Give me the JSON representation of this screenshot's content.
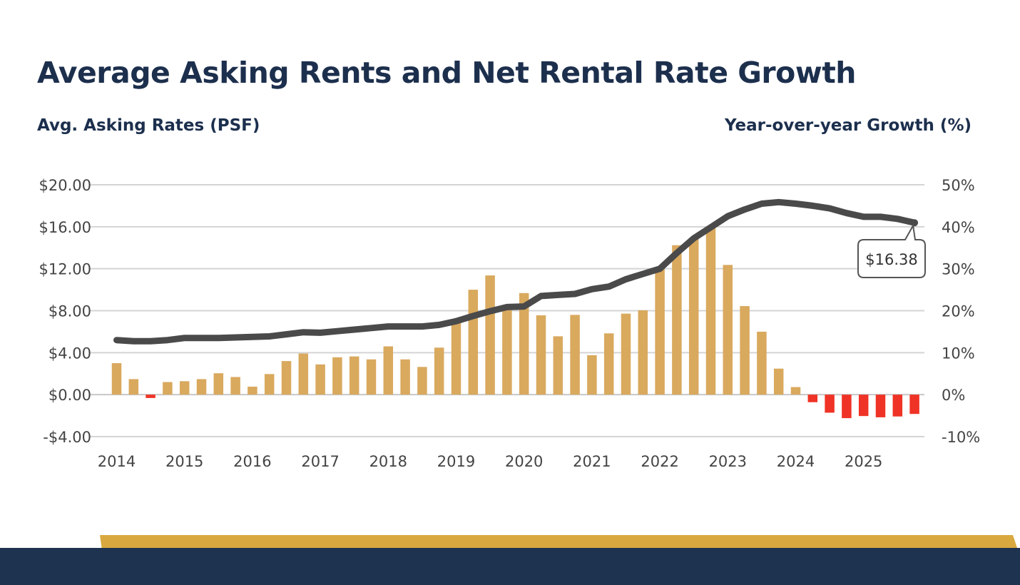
{
  "header": {
    "title": "Average Asking Rents and Net Rental Rate Growth",
    "left_axis_title": "Avg. Asking Rates (PSF)",
    "right_axis_title": "Year-over-year Growth (%)"
  },
  "colors": {
    "title": "#1c2f4d",
    "bar_positive": "#d9a95e",
    "bar_negative": "#ef3326",
    "line": "#4a4a4a",
    "grid": "#d4d4d4",
    "tick": "#444444",
    "band_gold": "#d9a93f",
    "band_navy": "#1e3350"
  },
  "chart_data": {
    "type": "bar+line",
    "title": "Average Asking Rents and Net Rental Rate Growth",
    "left_axis": {
      "label": "Avg. Asking Rates (PSF)",
      "range": [
        -4,
        20
      ],
      "ticks": [
        "-$4.00",
        "$0.00",
        "$4.00",
        "$8.00",
        "$12.00",
        "$16.00",
        "$20.00"
      ],
      "tick_values": [
        -4,
        0,
        4,
        8,
        12,
        16,
        20
      ]
    },
    "right_axis": {
      "label": "Year-over-year Growth (%)",
      "range": [
        -10,
        50
      ],
      "ticks": [
        "-10%",
        "0%",
        "10%",
        "20%",
        "30%",
        "40%",
        "50%"
      ],
      "tick_values": [
        -10,
        0,
        10,
        20,
        30,
        40,
        50
      ]
    },
    "x_tick_labels": [
      "2014",
      "2015",
      "2016",
      "2017",
      "2018",
      "2019",
      "2020",
      "2021",
      "2022",
      "2023",
      "2024",
      "2025"
    ],
    "quarters_per_year": 4,
    "series": [
      {
        "name": "Year-over-year Growth (%)",
        "type": "bar",
        "axis": "right",
        "values": [
          7.5,
          3.7,
          -0.8,
          3.0,
          3.2,
          3.7,
          5.1,
          4.2,
          1.9,
          4.9,
          8.0,
          9.8,
          7.2,
          8.9,
          9.1,
          8.4,
          11.5,
          8.4,
          6.6,
          11.2,
          17.7,
          25.0,
          28.4,
          20.7,
          24.2,
          18.9,
          13.9,
          19.0,
          9.4,
          14.6,
          19.3,
          20.1,
          30.2,
          35.6,
          37.4,
          40.0,
          30.9,
          21.1,
          15.0,
          6.2,
          1.8,
          -1.8,
          -4.3,
          -5.6,
          -5.1,
          -5.4,
          -5.2,
          -4.6
        ]
      },
      {
        "name": "Avg. Asking Rates (PSF)",
        "type": "line",
        "axis": "left",
        "values": [
          5.2,
          5.1,
          5.1,
          5.2,
          5.4,
          5.4,
          5.4,
          5.45,
          5.5,
          5.55,
          5.75,
          5.95,
          5.9,
          6.05,
          6.2,
          6.35,
          6.5,
          6.5,
          6.5,
          6.65,
          7.0,
          7.5,
          7.95,
          8.35,
          8.4,
          9.4,
          9.5,
          9.6,
          10.05,
          10.3,
          11.0,
          11.5,
          12.0,
          13.5,
          14.9,
          15.95,
          17.0,
          17.65,
          18.2,
          18.35,
          18.2,
          18.0,
          17.75,
          17.3,
          16.95,
          16.95,
          16.75,
          16.38
        ]
      }
    ],
    "callout": {
      "label": "$16.38",
      "point_index": 47
    }
  }
}
